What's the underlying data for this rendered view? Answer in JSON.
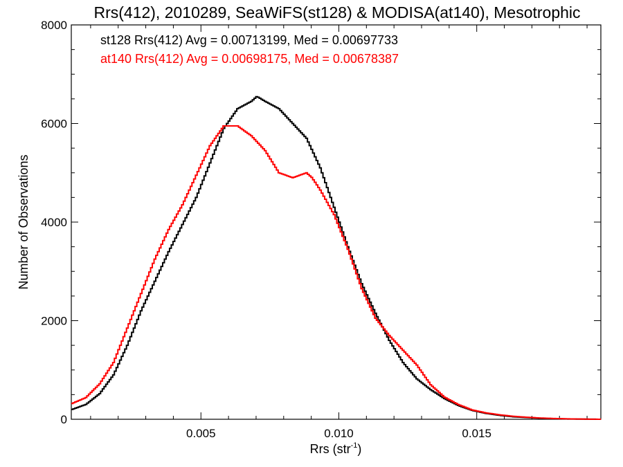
{
  "chart_data": {
    "type": "line",
    "style": "histogram-step",
    "title": "Rrs(412), 2010289, SeaWiFS(st128) & MODISA(at140), Mesotrophic",
    "xlabel_main": "Rrs (str",
    "xlabel_sup": "-1",
    "xlabel_end": ")",
    "ylabel": "Number of Observations",
    "xlim": [
      0.0003,
      0.0195
    ],
    "ylim": [
      0,
      8000
    ],
    "xticks": [
      {
        "value": 0.005,
        "label": "0.005"
      },
      {
        "value": 0.01,
        "label": "0.010"
      },
      {
        "value": 0.015,
        "label": "0.015"
      }
    ],
    "yticks": [
      {
        "value": 0,
        "label": "0"
      },
      {
        "value": 2000,
        "label": "2000"
      },
      {
        "value": 4000,
        "label": "4000"
      },
      {
        "value": 6000,
        "label": "6000"
      },
      {
        "value": 8000,
        "label": "8000"
      }
    ],
    "grid": false,
    "legend_position": "top-left",
    "series": [
      {
        "name": "st128 Rrs(412) Avg = 0.00713199, Med = 0.00697733",
        "color": "#000000",
        "points": [
          [
            0.0003,
            200
          ],
          [
            0.0008,
            300
          ],
          [
            0.0013,
            520
          ],
          [
            0.0018,
            900
          ],
          [
            0.0023,
            1500
          ],
          [
            0.0028,
            2200
          ],
          [
            0.0033,
            2800
          ],
          [
            0.0038,
            3400
          ],
          [
            0.0043,
            3950
          ],
          [
            0.0048,
            4500
          ],
          [
            0.0053,
            5200
          ],
          [
            0.0058,
            5900
          ],
          [
            0.0063,
            6300
          ],
          [
            0.0068,
            6450
          ],
          [
            0.007,
            6550
          ],
          [
            0.0073,
            6450
          ],
          [
            0.0078,
            6300
          ],
          [
            0.0083,
            6000
          ],
          [
            0.0088,
            5700
          ],
          [
            0.0093,
            5100
          ],
          [
            0.0098,
            4300
          ],
          [
            0.0103,
            3500
          ],
          [
            0.0108,
            2750
          ],
          [
            0.0113,
            2150
          ],
          [
            0.0118,
            1600
          ],
          [
            0.0123,
            1150
          ],
          [
            0.0128,
            820
          ],
          [
            0.0133,
            600
          ],
          [
            0.0138,
            420
          ],
          [
            0.0143,
            280
          ],
          [
            0.0148,
            180
          ],
          [
            0.0153,
            120
          ],
          [
            0.0158,
            80
          ],
          [
            0.0163,
            50
          ],
          [
            0.0168,
            35
          ],
          [
            0.0173,
            20
          ],
          [
            0.0178,
            12
          ],
          [
            0.0183,
            6
          ],
          [
            0.0188,
            3
          ],
          [
            0.0195,
            0
          ]
        ]
      },
      {
        "name": "at140 Rrs(412) Avg = 0.00698175, Med = 0.00678387",
        "color": "#ff0000",
        "points": [
          [
            0.0003,
            320
          ],
          [
            0.0008,
            440
          ],
          [
            0.0013,
            720
          ],
          [
            0.0018,
            1150
          ],
          [
            0.0023,
            1850
          ],
          [
            0.0028,
            2550
          ],
          [
            0.0033,
            3250
          ],
          [
            0.0038,
            3850
          ],
          [
            0.0043,
            4350
          ],
          [
            0.0048,
            4950
          ],
          [
            0.0053,
            5550
          ],
          [
            0.0058,
            5950
          ],
          [
            0.0063,
            5950
          ],
          [
            0.0068,
            5750
          ],
          [
            0.0073,
            5450
          ],
          [
            0.0078,
            5000
          ],
          [
            0.0083,
            4900
          ],
          [
            0.0088,
            5000
          ],
          [
            0.009,
            4900
          ],
          [
            0.0093,
            4650
          ],
          [
            0.0098,
            4150
          ],
          [
            0.0103,
            3450
          ],
          [
            0.0108,
            2650
          ],
          [
            0.0113,
            2050
          ],
          [
            0.0118,
            1700
          ],
          [
            0.0123,
            1400
          ],
          [
            0.0128,
            1100
          ],
          [
            0.0133,
            700
          ],
          [
            0.0138,
            450
          ],
          [
            0.0143,
            300
          ],
          [
            0.0148,
            190
          ],
          [
            0.0153,
            130
          ],
          [
            0.0158,
            90
          ],
          [
            0.0163,
            60
          ],
          [
            0.0168,
            40
          ],
          [
            0.0173,
            25
          ],
          [
            0.0178,
            15
          ],
          [
            0.0183,
            8
          ],
          [
            0.0188,
            4
          ],
          [
            0.0195,
            0
          ]
        ]
      }
    ]
  }
}
